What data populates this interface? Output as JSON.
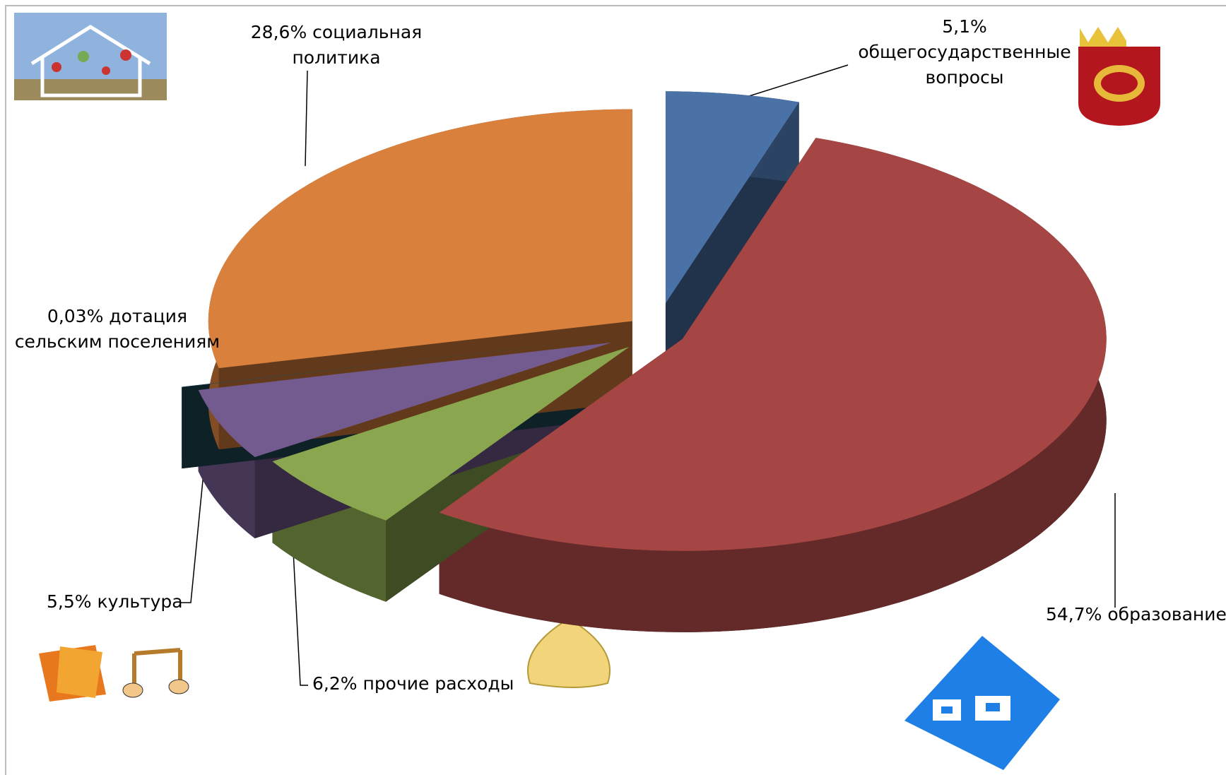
{
  "chart_data": {
    "type": "pie3d",
    "categories": [
      "общегосударственные вопросы",
      "образование",
      "прочие расходы",
      "культура",
      "дотация сельским поселениям",
      "социальная политика"
    ],
    "values": [
      5.1,
      54.7,
      6.2,
      5.5,
      0.03,
      28.6
    ],
    "value_labels": [
      "5,1%",
      "54,7%",
      "6,2%",
      "5,5%",
      "0,03%",
      "28,6%"
    ],
    "colors": [
      "#4a72a6",
      "#a54645",
      "#8aa64e",
      "#735a8f",
      "#1f4a57",
      "#d9803d"
    ]
  }
}
